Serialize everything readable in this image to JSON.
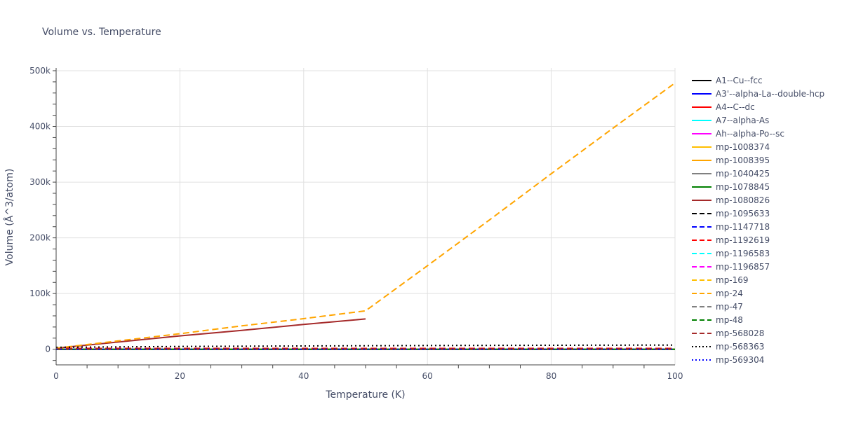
{
  "chart_data": {
    "type": "line",
    "title": "Volume vs. Temperature",
    "xlabel": "Temperature (K)",
    "ylabel": "Volume (Å^3/atom)",
    "xlim": [
      0,
      100
    ],
    "ylim": [
      -28000,
      505000
    ],
    "xticks": [
      0,
      20,
      40,
      60,
      80,
      100
    ],
    "xtick_labels": [
      "0",
      "20",
      "40",
      "60",
      "80",
      "100"
    ],
    "yticks": [
      0,
      100000,
      200000,
      300000,
      400000,
      500000
    ],
    "ytick_labels": [
      "0",
      "100k",
      "200k",
      "300k",
      "400k",
      "500k"
    ],
    "grid": true,
    "legend_position": "right",
    "series": [
      {
        "name": "A1--Cu--fcc",
        "color": "#000000",
        "dash": "solid",
        "x": [
          0,
          100
        ],
        "y": [
          0,
          0
        ]
      },
      {
        "name": "A3'--alpha-La--double-hcp",
        "color": "#0000ff",
        "dash": "solid",
        "x": [
          0,
          100
        ],
        "y": [
          0,
          0
        ]
      },
      {
        "name": "A4--C--dc",
        "color": "#ff0000",
        "dash": "solid",
        "x": [
          0,
          100
        ],
        "y": [
          0,
          0
        ]
      },
      {
        "name": "A7--alpha-As",
        "color": "#00ffff",
        "dash": "solid",
        "x": [
          0,
          100
        ],
        "y": [
          0,
          0
        ]
      },
      {
        "name": "Ah--alpha-Po--sc",
        "color": "#ff00ff",
        "dash": "solid",
        "x": [
          0,
          100
        ],
        "y": [
          0,
          0
        ]
      },
      {
        "name": "mp-1008374",
        "color": "#ffbf00",
        "dash": "solid",
        "x": [
          0,
          100
        ],
        "y": [
          0,
          0
        ]
      },
      {
        "name": "mp-1008395",
        "color": "#ffa500",
        "dash": "solid",
        "x": [
          0,
          100
        ],
        "y": [
          0,
          0
        ]
      },
      {
        "name": "mp-1040425",
        "color": "#808080",
        "dash": "solid",
        "x": [
          0,
          100
        ],
        "y": [
          0,
          0
        ]
      },
      {
        "name": "mp-1078845",
        "color": "#008000",
        "dash": "solid",
        "x": [
          0,
          100
        ],
        "y": [
          0,
          0
        ]
      },
      {
        "name": "mp-1080826",
        "color": "#a52a2a",
        "dash": "solid",
        "x": [
          0,
          10,
          20,
          30,
          40,
          50
        ],
        "y": [
          2000,
          13000,
          24000,
          34000,
          44500,
          54500
        ]
      },
      {
        "name": "mp-1095633",
        "color": "#000000",
        "dash": "dash",
        "x": [
          0,
          100
        ],
        "y": [
          0,
          0
        ]
      },
      {
        "name": "mp-1147718",
        "color": "#0000ff",
        "dash": "dash",
        "x": [
          0,
          100
        ],
        "y": [
          0,
          0
        ]
      },
      {
        "name": "mp-1192619",
        "color": "#ff0000",
        "dash": "dash",
        "x": [
          0,
          100
        ],
        "y": [
          1500,
          1500
        ]
      },
      {
        "name": "mp-1196583",
        "color": "#00ffff",
        "dash": "dash",
        "x": [
          0,
          100
        ],
        "y": [
          0,
          0
        ]
      },
      {
        "name": "mp-1196857",
        "color": "#ff00ff",
        "dash": "dash",
        "x": [
          0,
          100
        ],
        "y": [
          0,
          0
        ]
      },
      {
        "name": "mp-169",
        "color": "#ffbf00",
        "dash": "dash",
        "x": [
          0,
          100
        ],
        "y": [
          0,
          0
        ]
      },
      {
        "name": "mp-24",
        "color": "#ffa500",
        "dash": "dash",
        "x": [
          0,
          10,
          20,
          30,
          40,
          50,
          60,
          70,
          80,
          90,
          100
        ],
        "y": [
          2000,
          15000,
          28000,
          42000,
          55000,
          69000,
          150000,
          232000,
          315000,
          397000,
          478000
        ]
      },
      {
        "name": "mp-47",
        "color": "#808080",
        "dash": "dash",
        "x": [
          0,
          100
        ],
        "y": [
          0,
          0
        ]
      },
      {
        "name": "mp-48",
        "color": "#008000",
        "dash": "dash",
        "x": [
          0,
          100
        ],
        "y": [
          0,
          0
        ]
      },
      {
        "name": "mp-568028",
        "color": "#a52a2a",
        "dash": "dash",
        "x": [
          0,
          100
        ],
        "y": [
          500,
          500
        ]
      },
      {
        "name": "mp-568363",
        "color": "#000000",
        "dash": "dot",
        "x": [
          0,
          20,
          40,
          60,
          80,
          100
        ],
        "y": [
          3500,
          5000,
          6000,
          6700,
          7200,
          7600
        ]
      },
      {
        "name": "mp-569304",
        "color": "#0000ff",
        "dash": "dot",
        "x": [
          0,
          100
        ],
        "y": [
          0,
          0
        ]
      }
    ]
  }
}
